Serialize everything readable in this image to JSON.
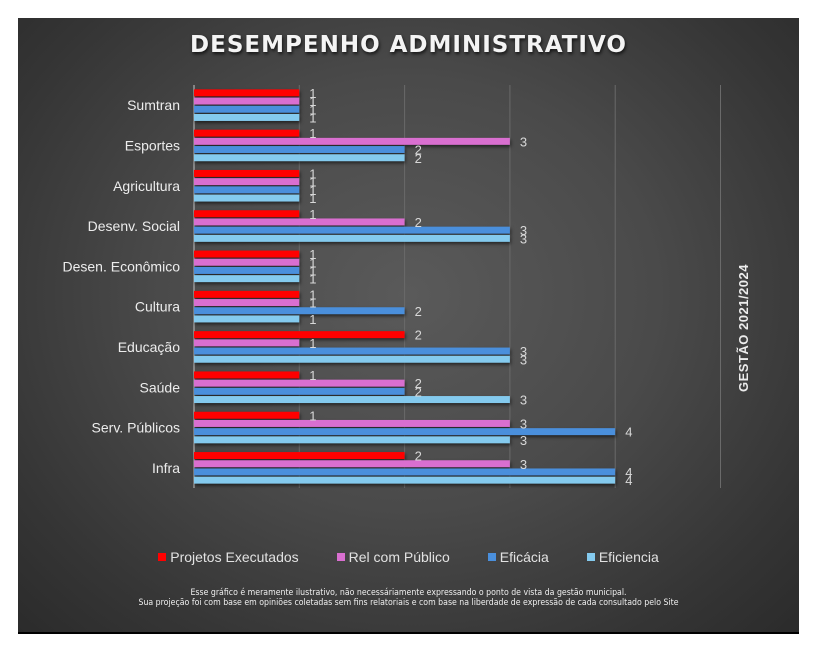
{
  "chart_data": {
    "type": "bar",
    "orientation": "horizontal",
    "title": "DESEMPENHO ADMINISTRATIVO",
    "side_label": "GESTÃO 2021/2024",
    "xlabel": "",
    "ylabel": "",
    "xlim": [
      0,
      5
    ],
    "grid": true,
    "legend_position": "bottom",
    "categories": [
      "Sumtran",
      "Esportes",
      "Agricultura",
      "Desenv. Social",
      "Desen. Econômico",
      "Cultura",
      "Educação",
      "Saúde",
      "Serv. Públicos",
      "Infra"
    ],
    "series": [
      {
        "name": "Projetos Executados",
        "color": "#ff0000",
        "values": [
          1,
          1,
          1,
          1,
          1,
          1,
          2,
          1,
          1,
          2
        ]
      },
      {
        "name": "Rel com Público",
        "color": "#d96fd0",
        "values": [
          1,
          3,
          1,
          2,
          1,
          1,
          1,
          2,
          3,
          3
        ]
      },
      {
        "name": "Eficácia",
        "color": "#4a8fdc",
        "values": [
          1,
          2,
          1,
          3,
          1,
          2,
          3,
          2,
          4,
          4
        ]
      },
      {
        "name": "Eficiencia",
        "color": "#84caee",
        "values": [
          1,
          2,
          1,
          3,
          1,
          1,
          3,
          3,
          3,
          4
        ]
      }
    ]
  },
  "disclaimer": {
    "line1": "Esse gráfico é meramente ilustrativo, não necessáriamente expressando o ponto de vista da gestão municipal.",
    "line2": "Sua projeção foi com base em opiniões coletadas sem fins relatoriais e com base na liberdade de expressão de cada consultado pelo Site"
  }
}
